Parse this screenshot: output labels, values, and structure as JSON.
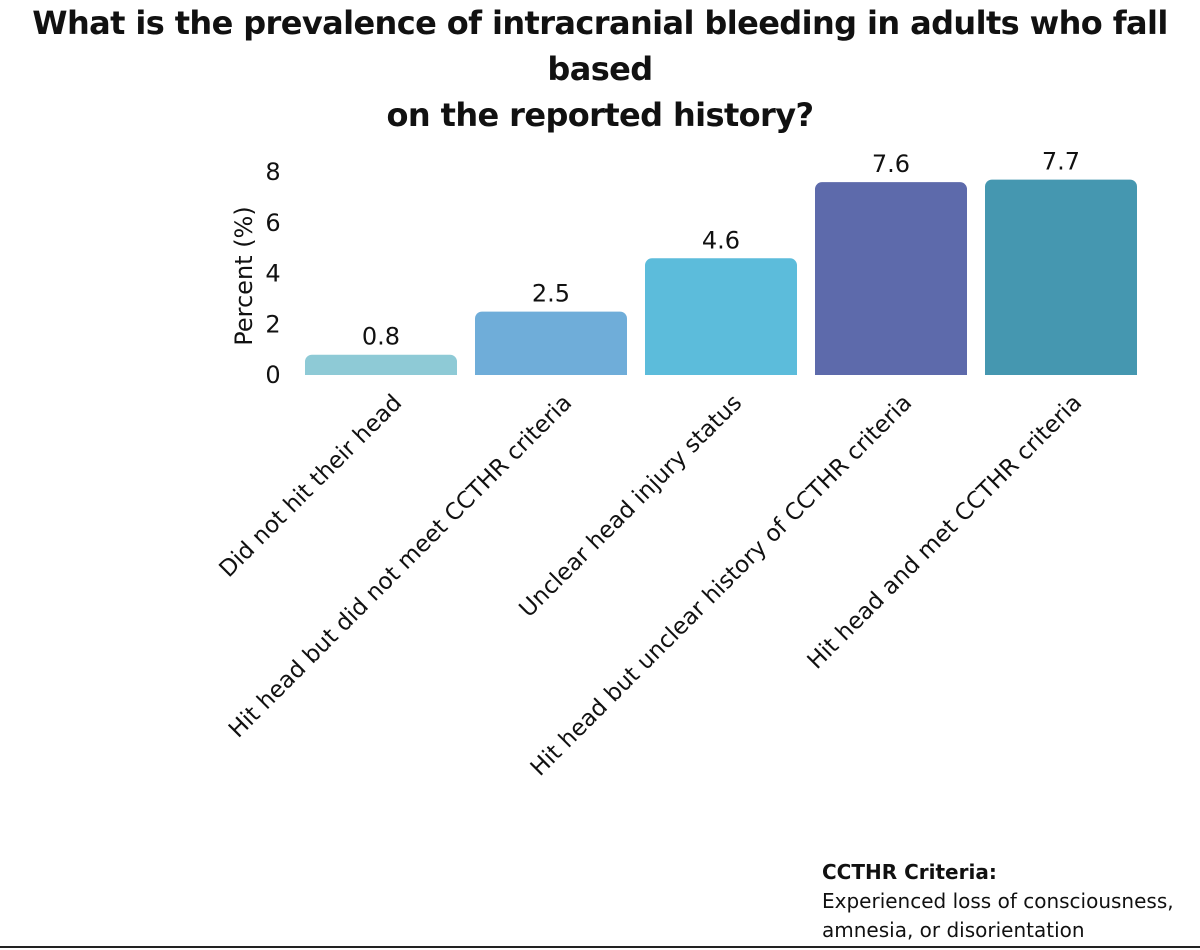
{
  "chart_data": {
    "type": "bar",
    "title": "What is the prevalence of intracranial bleeding in adults who fall based on the reported history?",
    "title_lines": [
      "What is the prevalence of intracranial bleeding in adults who fall based",
      "on the reported history?"
    ],
    "categories": [
      "Did not hit their head",
      "Hit head but did not meet CCTHR criteria",
      "Unclear head injury status",
      "Hit head but unclear history of CCTHR criteria",
      "Hit head and met CCTHR criteria"
    ],
    "values": [
      0.8,
      2.5,
      4.6,
      7.6,
      7.7
    ],
    "value_labels": [
      "0.8",
      "2.5",
      "4.6",
      "7.6",
      "7.7"
    ],
    "colors": [
      "#8ecad6",
      "#6fadd9",
      "#5cbcdb",
      "#5d6aab",
      "#4597b0"
    ],
    "xlabel": "",
    "ylabel": "Percent (%)",
    "ylim": [
      0,
      8
    ],
    "yticks": [
      "0",
      "2",
      "4",
      "6",
      "8"
    ],
    "grid": false,
    "legend": null
  },
  "footnote": {
    "title": "CCTHR Criteria:",
    "line1": "Experienced loss of consciousness,",
    "line2": "amnesia, or disorientation"
  }
}
